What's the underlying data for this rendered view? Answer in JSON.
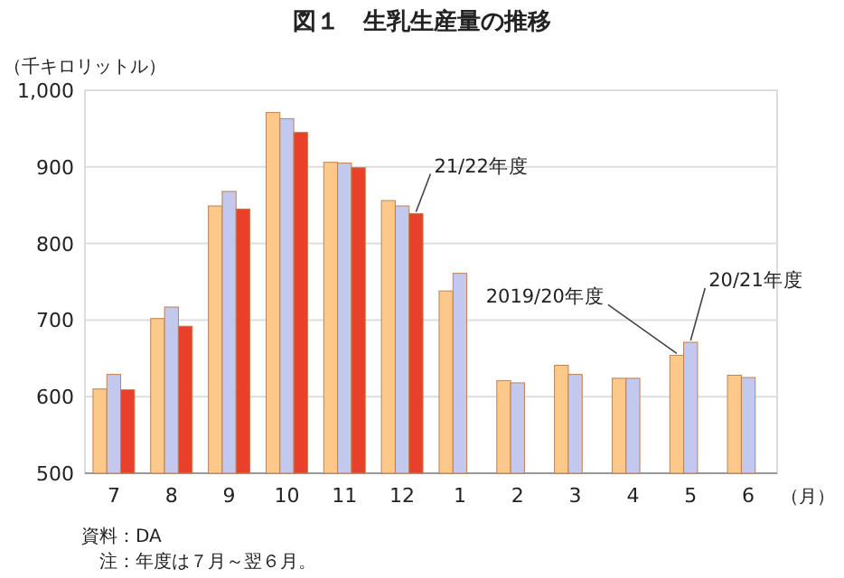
{
  "chart_data": {
    "type": "bar",
    "title": "図１　生乳生産量の推移",
    "ylabel": "（千キロリットル）",
    "xlabel": "（月）",
    "categories": [
      "7",
      "8",
      "9",
      "10",
      "11",
      "12",
      "1",
      "2",
      "3",
      "4",
      "5",
      "6"
    ],
    "series": [
      {
        "name": "2019/20年度",
        "color": "#fcc98a",
        "values": [
          610,
          702,
          849,
          971,
          906,
          856,
          738,
          621,
          641,
          624,
          654,
          628
        ]
      },
      {
        "name": "20/21年度",
        "color": "#c3c8ee",
        "values": [
          629,
          717,
          868,
          963,
          905,
          849,
          761,
          618,
          629,
          624,
          671,
          625
        ]
      },
      {
        "name": "21/22年度",
        "color": "#e8402a",
        "values": [
          609,
          692,
          845,
          945,
          899,
          839,
          null,
          null,
          null,
          null,
          null,
          null
        ]
      }
    ],
    "ylim": [
      500,
      1000
    ],
    "yticks": [
      {
        "value": 500,
        "label": "500"
      },
      {
        "value": 600,
        "label": "600"
      },
      {
        "value": 700,
        "label": "700"
      },
      {
        "value": 800,
        "label": "800"
      },
      {
        "value": 900,
        "label": "900"
      },
      {
        "value": 1000,
        "label": "1,000"
      }
    ],
    "grid": "y",
    "annotations": [
      "資料：DA",
      "注：年度は７月～翌６月。"
    ]
  }
}
